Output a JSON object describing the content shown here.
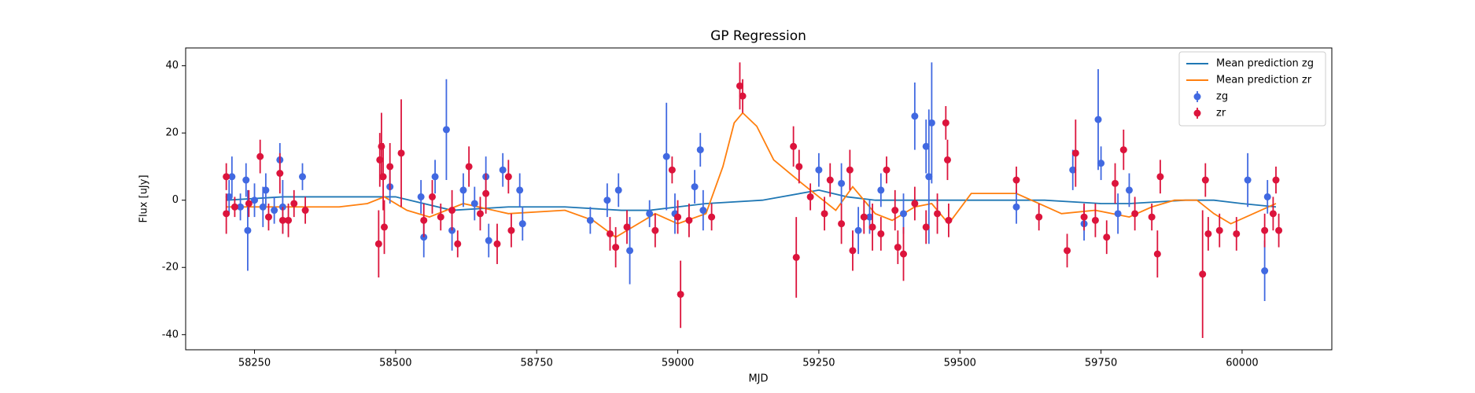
{
  "chart_data": {
    "type": "errorbar",
    "title": "GP Regression",
    "x_label": "MJD",
    "y_label": "Flux [uJy]",
    "xlim": [
      58128,
      60159
    ],
    "ylim": [
      -44.5,
      45.3
    ],
    "xticks": [
      58250,
      58500,
      58750,
      59000,
      59250,
      59500,
      59750,
      60000
    ],
    "yticks": [
      -40,
      -20,
      0,
      20,
      40
    ],
    "legend": "upper right",
    "series": [
      {
        "name": "Mean prediction zg",
        "kind": "line",
        "color": "#1f77b4",
        "x": [
          58200,
          58300,
          58400,
          58500,
          58600,
          58700,
          58800,
          58900,
          58950,
          59000,
          59050,
          59150,
          59250,
          59300,
          59350,
          59450,
          59550,
          59650,
          59750,
          59800,
          59900,
          59950,
          60000,
          60060
        ],
        "values": [
          0,
          1,
          1,
          1,
          -3,
          -2,
          -2,
          -3,
          -3,
          -2,
          -1,
          0,
          3,
          1,
          0,
          0,
          0,
          0,
          -1,
          -1,
          0,
          0,
          -1,
          -2
        ]
      },
      {
        "name": "Mean prediction zr",
        "kind": "line",
        "color": "#ff7f0e",
        "x": [
          58200,
          58300,
          58400,
          58450,
          58480,
          58520,
          58560,
          58620,
          58700,
          58800,
          58850,
          58890,
          58930,
          58960,
          59000,
          59050,
          59080,
          59100,
          59115,
          59140,
          59170,
          59220,
          59280,
          59310,
          59350,
          59380,
          59420,
          59450,
          59480,
          59520,
          59600,
          59640,
          59680,
          59740,
          59800,
          59840,
          59880,
          59920,
          59950,
          59980,
          60020,
          60060
        ],
        "values": [
          -2,
          -2,
          -2,
          -1,
          1,
          -3,
          -5,
          -1,
          -4,
          -3,
          -6,
          -11,
          -7,
          -4,
          -7,
          -4,
          10,
          23,
          26,
          22,
          12,
          5,
          -3,
          4,
          -4,
          -6,
          -2,
          -1,
          -7,
          2,
          2,
          -1,
          -4,
          -3,
          -5,
          -2,
          0,
          0,
          -4,
          -7,
          -4,
          -1
        ]
      },
      {
        "name": "zg",
        "kind": "errorbar",
        "color": "#4169e1",
        "x": [
          58205,
          58210,
          58225,
          58235,
          58238,
          58250,
          58265,
          58270,
          58285,
          58295,
          58300,
          58335,
          58490,
          58545,
          58550,
          58570,
          58590,
          58600,
          58620,
          58640,
          58660,
          58665,
          58690,
          58720,
          58725,
          58845,
          58875,
          58895,
          58915,
          58950,
          58980,
          58995,
          59030,
          59040,
          59045,
          59250,
          59290,
          59320,
          59340,
          59360,
          59400,
          59420,
          59440,
          59445,
          59450,
          59600,
          59700,
          59720,
          59745,
          59750,
          59780,
          59800,
          60010,
          60040,
          60045
        ],
        "values": [
          1,
          7,
          -2,
          6,
          -9,
          0,
          -2,
          3,
          -3,
          12,
          -2,
          7,
          4,
          1,
          -11,
          7,
          21,
          -9,
          3,
          -1,
          7,
          -12,
          9,
          3,
          -7,
          -6,
          0,
          3,
          -15,
          -4,
          13,
          -4,
          4,
          15,
          -3,
          9,
          5,
          -9,
          -5,
          3,
          -4,
          25,
          16,
          7,
          23,
          -2,
          9,
          -7,
          24,
          11,
          -4,
          3,
          6,
          -21,
          1
        ],
        "errors": [
          5,
          6,
          4,
          5,
          12,
          5,
          6,
          5,
          4,
          5,
          8,
          4,
          5,
          5,
          6,
          5,
          15,
          6,
          5,
          5,
          6,
          5,
          5,
          5,
          5,
          4,
          5,
          5,
          10,
          4,
          16,
          6,
          5,
          5,
          6,
          5,
          6,
          7,
          5,
          5,
          6,
          10,
          8,
          20,
          18,
          5,
          6,
          5,
          15,
          5,
          6,
          5,
          8,
          9,
          5
        ]
      },
      {
        "name": "zr",
        "kind": "errorbar",
        "color": "#dc143c",
        "x": [
          58200,
          58200,
          58215,
          58240,
          58260,
          58275,
          58295,
          58300,
          58310,
          58320,
          58340,
          58470,
          58472,
          58475,
          58478,
          58480,
          58490,
          58510,
          58550,
          58565,
          58580,
          58600,
          58610,
          58630,
          58650,
          58660,
          58680,
          58700,
          58705,
          58880,
          58890,
          58910,
          58960,
          58990,
          59000,
          59005,
          59020,
          59060,
          59110,
          59115,
          59205,
          59210,
          59215,
          59235,
          59260,
          59270,
          59290,
          59305,
          59310,
          59330,
          59345,
          59360,
          59370,
          59385,
          59390,
          59400,
          59420,
          59440,
          59460,
          59475,
          59478,
          59480,
          59600,
          59640,
          59690,
          59705,
          59720,
          59740,
          59760,
          59775,
          59790,
          59810,
          59840,
          59850,
          59855,
          59930,
          59935,
          59940,
          59960,
          59990,
          60040,
          60055,
          60060,
          60065
        ],
        "values": [
          7,
          -4,
          -2,
          -1,
          13,
          -5,
          8,
          -6,
          -6,
          -1,
          -3,
          -13,
          12,
          16,
          7,
          -8,
          10,
          14,
          -6,
          1,
          -5,
          -3,
          -13,
          10,
          -4,
          2,
          -13,
          7,
          -9,
          -10,
          -14,
          -8,
          -9,
          9,
          -5,
          -28,
          -6,
          -5,
          34,
          31,
          16,
          -17,
          10,
          1,
          -4,
          6,
          -7,
          9,
          -15,
          -5,
          -8,
          -10,
          9,
          -3,
          -14,
          -16,
          -1,
          -8,
          -4,
          23,
          12,
          -6,
          6,
          -5,
          -15,
          14,
          -5,
          -6,
          -11,
          5,
          15,
          -4,
          -5,
          -16,
          7,
          -22,
          6,
          -10,
          -9,
          -10,
          -9,
          -4,
          6,
          -9
        ],
        "errors": [
          4,
          6,
          3,
          4,
          5,
          4,
          6,
          4,
          5,
          4,
          4,
          10,
          8,
          10,
          10,
          8,
          7,
          16,
          5,
          5,
          4,
          6,
          4,
          6,
          5,
          6,
          6,
          5,
          5,
          5,
          6,
          5,
          5,
          4,
          5,
          10,
          5,
          4,
          7,
          5,
          6,
          12,
          5,
          4,
          5,
          5,
          6,
          6,
          6,
          5,
          7,
          5,
          4,
          6,
          5,
          8,
          5,
          5,
          6,
          5,
          6,
          5,
          4,
          4,
          5,
          10,
          4,
          5,
          5,
          6,
          6,
          5,
          4,
          7,
          5,
          19,
          5,
          5,
          5,
          5,
          5,
          5,
          4,
          5
        ]
      }
    ]
  }
}
